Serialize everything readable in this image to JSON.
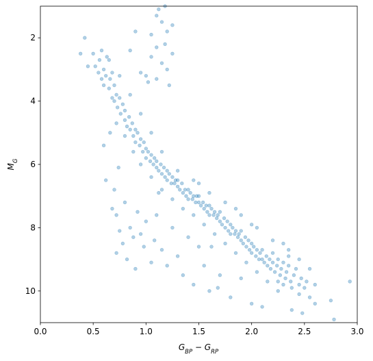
{
  "chart_data": {
    "type": "scatter",
    "xlabel": [
      {
        "text": "G"
      },
      {
        "sub": "BP"
      },
      {
        "text": " − G"
      },
      {
        "sub": "RP"
      }
    ],
    "ylabel": [
      {
        "text": "M"
      },
      {
        "sub": "G"
      }
    ],
    "xlim": [
      0,
      3
    ],
    "ylim": [
      11,
      1
    ],
    "xticks": [
      {
        "value": 0,
        "label": "0.0"
      },
      0.5,
      {
        "value": 1,
        "label": "1.0"
      },
      1.5,
      {
        "value": 2,
        "label": "2.0"
      },
      2.5,
      {
        "value": 3,
        "label": "3.0"
      }
    ],
    "yticks": [
      2,
      4,
      6,
      8,
      10
    ],
    "marker_alpha": 0.35,
    "series": [
      {
        "color": "#1f77b4",
        "x": [
          0.52,
          0.55,
          0.56,
          0.58,
          0.6,
          0.6,
          0.62,
          0.63,
          0.65,
          0.66,
          0.68,
          0.7,
          0.7,
          0.72,
          0.73,
          0.75,
          0.76,
          0.78,
          0.8,
          0.8,
          0.82,
          0.84,
          0.85,
          0.87,
          0.88,
          0.9,
          0.9,
          0.92,
          0.94,
          0.95,
          0.97,
          0.98,
          1.0,
          1.0,
          1.02,
          1.04,
          1.05,
          1.07,
          1.08,
          1.1,
          1.1,
          1.12,
          1.14,
          1.15,
          1.17,
          1.18,
          1.2,
          1.2,
          1.22,
          1.24,
          1.25,
          1.27,
          1.28,
          1.3,
          1.3,
          1.32,
          1.34,
          1.35,
          1.37,
          1.38,
          1.4,
          1.4,
          1.42,
          1.44,
          1.45,
          1.47,
          1.48,
          1.5,
          1.5,
          1.52,
          1.54,
          1.55,
          1.57,
          1.58,
          1.6,
          1.6,
          1.62,
          1.64,
          1.65,
          1.67,
          1.68,
          1.7,
          1.7,
          1.72,
          1.74,
          1.75,
          1.77,
          1.78,
          1.8,
          1.8,
          1.82,
          1.84,
          1.85,
          1.87,
          1.88,
          1.9,
          1.9,
          1.92,
          1.94,
          1.95,
          1.97,
          1.98,
          2.0,
          2.0,
          2.02,
          2.04,
          2.05,
          2.07,
          2.08,
          2.1,
          2.1,
          2.12,
          2.14,
          2.15,
          2.17,
          2.18,
          2.2,
          2.2,
          2.22,
          2.24,
          2.25,
          2.27,
          2.28,
          2.3,
          2.32,
          2.33,
          2.35,
          2.37,
          2.4,
          2.42,
          2.45,
          2.47,
          2.5,
          2.52,
          2.38,
          2.3,
          2.25,
          2.45,
          2.55,
          2.35,
          0.5,
          0.45,
          0.58,
          0.65,
          0.75,
          0.85,
          0.95,
          1.05,
          1.15,
          0.68,
          0.72,
          0.8,
          0.88,
          0.95,
          1.05,
          1.15,
          1.25,
          1.35,
          1.45,
          1.55,
          1.65,
          1.75,
          1.85,
          1.95,
          2.05,
          2.15,
          2.25,
          1.3,
          1.45,
          1.6,
          1.75,
          1.9,
          2.05,
          2.2,
          2.35,
          2.45,
          1.5,
          1.85,
          2.0,
          2.3,
          1.12,
          1.18,
          1.1,
          1.15,
          1.2,
          1.05,
          1.1,
          1.25,
          1.15,
          1.2,
          1.0,
          0.95,
          1.1,
          1.22,
          1.05,
          0.85,
          0.9,
          1.25,
          1.18,
          1.02,
          0.6,
          0.62,
          0.66,
          0.7,
          0.72,
          0.75,
          0.72,
          0.78,
          0.8,
          0.82,
          0.85,
          0.88,
          0.9,
          0.92,
          0.95,
          0.98,
          1.0,
          1.05,
          1.08,
          1.1,
          1.15,
          1.2,
          1.25,
          1.3,
          1.35,
          1.4,
          1.45,
          1.5,
          1.55,
          1.6,
          1.7,
          1.8,
          1.9,
          2.0,
          2.1,
          0.68,
          0.74,
          1.12,
          1.62,
          1.68,
          2.6,
          2.75,
          2.78,
          2.93,
          2.55,
          2.48,
          2.38,
          2.6,
          0.42,
          0.38
        ],
        "y": [
          2.9,
          3.1,
          2.7,
          3.3,
          3.0,
          3.5,
          3.2,
          2.6,
          3.6,
          3.3,
          3.9,
          3.5,
          4.0,
          3.8,
          4.2,
          3.9,
          4.4,
          4.1,
          4.6,
          4.3,
          4.8,
          4.5,
          4.9,
          4.7,
          5.1,
          4.9,
          5.3,
          5.0,
          5.4,
          5.2,
          5.6,
          5.3,
          5.5,
          5.8,
          5.6,
          5.9,
          5.7,
          6.0,
          5.8,
          6.1,
          5.9,
          6.2,
          6.0,
          6.3,
          6.1,
          6.4,
          6.2,
          6.5,
          6.3,
          6.6,
          6.4,
          6.6,
          6.5,
          6.7,
          6.5,
          6.8,
          6.6,
          6.9,
          6.8,
          7.0,
          6.8,
          7.1,
          6.9,
          7.1,
          7.0,
          7.2,
          7.0,
          7.2,
          7.0,
          7.3,
          7.2,
          7.4,
          7.3,
          7.5,
          7.3,
          7.6,
          7.4,
          7.6,
          7.5,
          7.7,
          7.6,
          7.8,
          7.5,
          7.9,
          7.7,
          8.0,
          7.8,
          8.1,
          7.9,
          8.2,
          8.0,
          8.2,
          8.1,
          8.3,
          8.2,
          8.4,
          8.1,
          8.5,
          8.3,
          8.6,
          8.4,
          8.7,
          8.5,
          8.8,
          8.6,
          8.9,
          8.7,
          9.0,
          8.8,
          9.0,
          8.7,
          9.1,
          8.9,
          9.2,
          9.0,
          9.3,
          9.1,
          8.8,
          9.4,
          9.2,
          9.0,
          9.5,
          9.3,
          9.1,
          9.6,
          9.4,
          9.2,
          9.7,
          9.5,
          9.3,
          9.8,
          9.6,
          9.9,
          9.7,
          9.9,
          9.8,
          9.7,
          10.1,
          10.2,
          8.9,
          2.5,
          2.9,
          2.4,
          2.7,
          3.2,
          3.8,
          4.4,
          5.0,
          5.6,
          3.1,
          4.7,
          5.1,
          5.6,
          6.0,
          6.4,
          6.8,
          7.1,
          7.4,
          7.6,
          7.9,
          8.2,
          8.5,
          8.8,
          9.1,
          9.4,
          9.7,
          10.0,
          6.2,
          6.5,
          6.9,
          7.2,
          7.6,
          8.0,
          8.4,
          8.7,
          9.0,
          6.6,
          7.4,
          7.9,
          8.5,
          1.1,
          1.0,
          1.3,
          1.5,
          1.8,
          1.9,
          2.3,
          2.5,
          2.8,
          3.0,
          3.2,
          3.1,
          3.3,
          3.5,
          2.6,
          2.4,
          1.8,
          1.6,
          2.2,
          3.4,
          5.4,
          6.5,
          5.0,
          6.8,
          7.6,
          8.1,
          8.8,
          8.5,
          7.2,
          9.0,
          8.0,
          8.3,
          9.3,
          7.5,
          8.2,
          8.6,
          7.8,
          9.1,
          8.4,
          7.6,
          8.7,
          9.2,
          8.0,
          8.9,
          9.5,
          8.3,
          9.8,
          8.6,
          9.2,
          10.0,
          9.5,
          10.2,
          9.6,
          10.4,
          10.5,
          7.4,
          6.1,
          6.9,
          8.6,
          9.9,
          10.4,
          10.3,
          10.9,
          9.7,
          9.3,
          10.7,
          10.6,
          9.8,
          2.0,
          2.5
        ]
      }
    ]
  }
}
